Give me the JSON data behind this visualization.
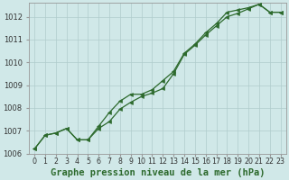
{
  "xlabel": "Graphe pression niveau de la mer (hPa)",
  "background_color": "#d0e8e8",
  "line_color": "#2d6a2d",
  "grid_color": "#b0cccc",
  "x_hours": [
    0,
    1,
    2,
    3,
    4,
    5,
    6,
    7,
    8,
    9,
    10,
    11,
    12,
    13,
    14,
    15,
    16,
    17,
    18,
    19,
    20,
    21,
    22,
    23
  ],
  "line1": [
    1006.2,
    1006.8,
    1006.9,
    1007.1,
    1006.6,
    1006.6,
    1007.2,
    1007.8,
    1008.3,
    1008.6,
    1008.6,
    1008.8,
    1009.2,
    1009.6,
    1010.4,
    1010.8,
    1011.3,
    1011.7,
    1012.2,
    1012.3,
    1012.4,
    1012.55,
    1012.2,
    1012.2
  ],
  "line2": [
    1006.2,
    1006.8,
    1006.9,
    1007.1,
    1006.6,
    1006.6,
    1007.1,
    1007.4,
    1007.95,
    1008.25,
    1008.5,
    1008.65,
    1008.85,
    1009.5,
    1010.35,
    1010.75,
    1011.2,
    1011.6,
    1012.0,
    1012.15,
    1012.35,
    1012.55,
    1012.2,
    1012.2
  ],
  "ylim": [
    1006.0,
    1012.6
  ],
  "ylim_display": [
    1006,
    1012
  ],
  "yticks": [
    1006,
    1007,
    1008,
    1009,
    1010,
    1011,
    1012
  ],
  "tick_fontsize": 6,
  "xlabel_fontsize": 7.5
}
